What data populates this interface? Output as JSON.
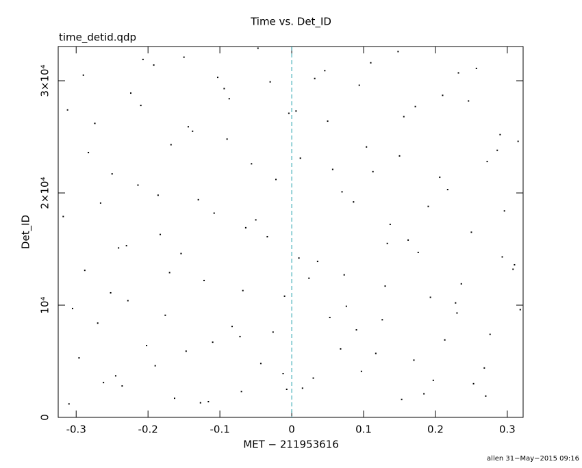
{
  "chart_data": {
    "type": "scatter",
    "title": "Time vs. Det_ID",
    "subtitle": "time_detid.qdp",
    "x_label": "MET − 211953616",
    "y_label": "Det_ID",
    "footer": "allen 31−May−2015 09:16",
    "color": "#000000",
    "vline": 0,
    "vline_color": "#2aa6b0",
    "xlim": [
      -0.325,
      0.322
    ],
    "ylim": [
      0,
      33050
    ],
    "xticks": [
      -0.3,
      -0.2,
      -0.1,
      0,
      0.1,
      0.2,
      0.3
    ],
    "yticks": [
      0,
      {
        "value": 10000,
        "label": "10⁴"
      },
      {
        "value": 20000,
        "label": "2×10⁴"
      },
      {
        "value": 30000,
        "label": "3×10⁴"
      }
    ],
    "x": [
      -0.31,
      -0.29,
      -0.27,
      -0.25,
      -0.23,
      -0.21,
      -0.19,
      -0.17,
      -0.15,
      -0.13,
      -0.11,
      -0.09,
      -0.07,
      -0.05,
      -0.03,
      -0.01,
      0.01,
      0.03,
      0.05,
      0.07,
      0.09,
      0.11,
      0.13,
      0.15,
      0.17,
      0.19,
      0.21,
      0.23,
      0.25,
      0.27,
      0.29,
      0.31,
      -0.318,
      -0.296,
      -0.274,
      -0.252,
      -0.236,
      -0.214,
      -0.192,
      -0.176,
      -0.154,
      -0.138,
      -0.116,
      -0.094,
      -0.072,
      -0.056,
      -0.034,
      -0.012,
      0.006,
      0.024,
      0.046,
      0.068,
      0.086,
      0.104,
      0.126,
      0.148,
      0.162,
      0.184,
      0.206,
      0.228,
      0.246,
      0.268,
      0.286,
      0.308,
      -0.305,
      -0.283,
      -0.262,
      -0.241,
      -0.224,
      -0.202,
      -0.186,
      -0.163,
      -0.144,
      -0.122,
      -0.103,
      -0.083,
      -0.064,
      -0.043,
      -0.022,
      -0.004,
      0.015,
      0.036,
      0.057,
      0.076,
      0.094,
      0.117,
      0.137,
      0.156,
      0.176,
      0.197,
      0.217,
      0.236,
      0.257,
      0.276,
      0.296,
      0.315,
      -0.312,
      -0.288,
      -0.266,
      -0.245,
      -0.228,
      -0.207,
      -0.183,
      -0.168,
      -0.147,
      -0.127,
      -0.108,
      -0.087,
      -0.068,
      -0.047,
      -0.026,
      -0.007,
      0.012,
      0.032,
      0.053,
      0.073,
      0.097,
      0.113,
      0.133,
      0.153,
      0.172,
      0.193,
      0.213,
      0.232,
      0.253,
      0.272,
      0.293,
      0.318
    ],
    "values": [
      1200,
      30500,
      8400,
      21700,
      15300,
      27800,
      4600,
      12900,
      32100,
      19400,
      6700,
      24800,
      2300,
      17600,
      29900,
      10800,
      14200,
      3500,
      26400,
      20100,
      7800,
      31600,
      11700,
      23300,
      5100,
      18800,
      28700,
      9300,
      16500,
      1900,
      25200,
      13600,
      17900,
      5300,
      26200,
      11100,
      2800,
      20700,
      31400,
      9100,
      14600,
      25500,
      1400,
      29300,
      7200,
      22600,
      16100,
      3900,
      27300,
      12400,
      30900,
      6100,
      19200,
      24100,
      8700,
      32600,
      15800,
      2100,
      21400,
      10200,
      28200,
      4400,
      23800,
      13200,
      9700,
      23600,
      3100,
      15100,
      28900,
      6400,
      19800,
      1700,
      25900,
      12200,
      30300,
      8100,
      16900,
      4800,
      21200,
      27100,
      2600,
      13900,
      22100,
      9900,
      29600,
      5700,
      17200,
      26800,
      14700,
      3300,
      20300,
      11900,
      31100,
      7400,
      18400,
      24600,
      27400,
      13100,
      19100,
      3700,
      10400,
      31900,
      16300,
      24300,
      5900,
      1300,
      18200,
      28400,
      11300,
      32900,
      7600,
      2500,
      23100,
      30200,
      8900,
      12700,
      4100,
      21900,
      15500,
      1600,
      27700,
      10700,
      6900,
      30700,
      3000,
      22800,
      14300,
      9600
    ]
  }
}
